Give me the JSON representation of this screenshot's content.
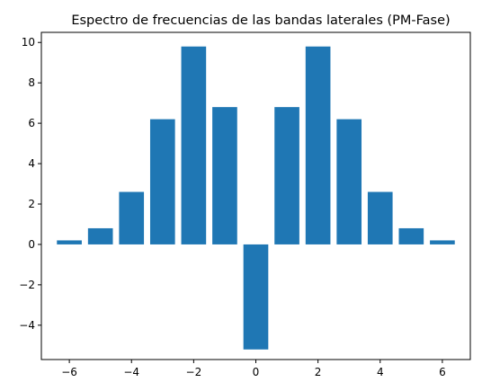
{
  "chart_data": {
    "type": "bar",
    "title": "Espectro de frecuencias de las bandas laterales (PM-Fase)",
    "xlabel": "",
    "ylabel": "",
    "x": [
      -6,
      -5,
      -4,
      -3,
      -2,
      -1,
      0,
      1,
      2,
      3,
      4,
      5,
      6
    ],
    "values": [
      0.2,
      0.8,
      2.6,
      6.2,
      9.8,
      6.8,
      -5.2,
      6.8,
      9.8,
      6.2,
      2.6,
      0.8,
      0.2
    ],
    "bar_color": "#1f77b4",
    "xlim": [
      -6.9,
      6.9
    ],
    "ylim": [
      -5.7,
      10.5
    ],
    "xticks": [
      -6,
      -4,
      -2,
      0,
      2,
      4,
      6
    ],
    "xtick_labels": [
      "−6",
      "−4",
      "−2",
      "0",
      "2",
      "4",
      "6"
    ],
    "yticks": [
      -4,
      -2,
      0,
      2,
      4,
      6,
      8,
      10
    ],
    "ytick_labels": [
      "−4",
      "−2",
      "0",
      "2",
      "4",
      "6",
      "8",
      "10"
    ],
    "grid": false,
    "legend": "none"
  }
}
